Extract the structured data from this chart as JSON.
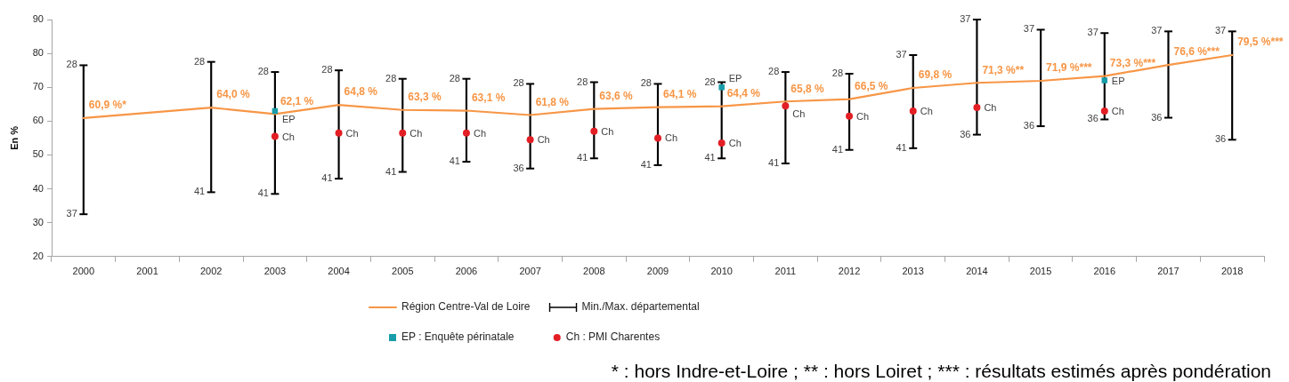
{
  "chart_data": {
    "type": "line",
    "ylabel": "En %",
    "categories": [
      "2000",
      "2001",
      "2002",
      "2003",
      "2004",
      "2005",
      "2006",
      "2007",
      "2008",
      "2009",
      "2010",
      "2011",
      "2012",
      "2013",
      "2014",
      "2015",
      "2016",
      "2017",
      "2018"
    ],
    "ylim": [
      20,
      90
    ],
    "yticks": [
      20,
      30,
      40,
      50,
      60,
      70,
      80,
      90
    ],
    "legend": "bottom",
    "series": [
      {
        "name": "Région Centre-Val de Loire",
        "color": "#f79646",
        "marker": "none",
        "values": [
          60.9,
          null,
          64.0,
          62.1,
          64.8,
          63.3,
          63.1,
          61.8,
          63.6,
          64.1,
          64.4,
          65.8,
          66.5,
          69.8,
          71.3,
          71.9,
          73.3,
          76.6,
          79.5
        ],
        "value_labels": [
          "60,9 %*",
          null,
          "64,0 %",
          "62,1 %",
          "64,8 %",
          "63,3 %",
          "63,1 %",
          "61,8 %",
          "63,6 %",
          "64,1 %",
          "64,4 %",
          "65,8 %",
          "66,5 %",
          "69,8 %",
          "71,3 %**",
          "71,9 %***",
          "73,3 %***",
          "76,6 %***",
          "79,5 %***"
        ]
      },
      {
        "name": "Min./Max. départemental",
        "type": "bar",
        "color": "#000000",
        "base": [
          32.5,
          null,
          39,
          38.5,
          43,
          45,
          48,
          46,
          49,
          47,
          49,
          47.5,
          51.5,
          52,
          56,
          58.5,
          60.5,
          61,
          54.5
        ],
        "values": [
          44,
          null,
          38.5,
          36,
          32,
          27.5,
          24.5,
          25,
          22.5,
          24,
          22.5,
          27,
          22.5,
          27.5,
          34,
          28.5,
          25.5,
          25.5,
          32
        ]
      },
      {
        "name": "EP : Enquête périnatale",
        "type": "scatter",
        "color": "#179ca9",
        "marker": "square",
        "values": [
          null,
          null,
          null,
          63,
          null,
          null,
          null,
          null,
          null,
          null,
          70,
          null,
          null,
          null,
          null,
          null,
          72,
          null,
          null
        ]
      },
      {
        "name": "Ch : PMI Charentes",
        "type": "scatter",
        "color": "#e31e24",
        "marker": "circle",
        "values": [
          null,
          null,
          null,
          55.5,
          56.5,
          56.5,
          56.5,
          54.5,
          57,
          55,
          53.5,
          64.5,
          61.5,
          63,
          64,
          null,
          63,
          null,
          null
        ]
      }
    ],
    "annotations": [
      {
        "text": "28",
        "x": "2000",
        "y": 76.5
      },
      {
        "text": "37",
        "x": "2000",
        "y": 32.5
      },
      {
        "text": "28",
        "x": "2002",
        "y": 77.5
      },
      {
        "text": "41",
        "x": "2002",
        "y": 39
      },
      {
        "text": "28",
        "x": "2003",
        "y": 74.5
      },
      {
        "text": "41",
        "x": "2003",
        "y": 38.5
      },
      {
        "text": "28",
        "x": "2004",
        "y": 75
      },
      {
        "text": "41",
        "x": "2004",
        "y": 43
      },
      {
        "text": "28",
        "x": "2005",
        "y": 72.5
      },
      {
        "text": "41",
        "x": "2005",
        "y": 45
      },
      {
        "text": "28",
        "x": "2006",
        "y": 72.5
      },
      {
        "text": "41",
        "x": "2006",
        "y": 48
      },
      {
        "text": "28",
        "x": "2007",
        "y": 71
      },
      {
        "text": "36",
        "x": "2007",
        "y": 46
      },
      {
        "text": "28",
        "x": "2008",
        "y": 71.5
      },
      {
        "text": "41",
        "x": "2008",
        "y": 49
      },
      {
        "text": "28",
        "x": "2009",
        "y": 71
      },
      {
        "text": "41",
        "x": "2009",
        "y": 47
      },
      {
        "text": "28",
        "x": "2010",
        "y": 71.5
      },
      {
        "text": "41",
        "x": "2010",
        "y": 49
      },
      {
        "text": "28",
        "x": "2011",
        "y": 74.5
      },
      {
        "text": "41",
        "x": "2011",
        "y": 47.5
      },
      {
        "text": "28",
        "x": "2012",
        "y": 74
      },
      {
        "text": "41",
        "x": "2012",
        "y": 51.5
      },
      {
        "text": "37",
        "x": "2013",
        "y": 79.5
      },
      {
        "text": "41",
        "x": "2013",
        "y": 52
      },
      {
        "text": "37",
        "x": "2014",
        "y": 90
      },
      {
        "text": "36",
        "x": "2014",
        "y": 56
      },
      {
        "text": "37",
        "x": "2015",
        "y": 87
      },
      {
        "text": "36",
        "x": "2015",
        "y": 58.5
      },
      {
        "text": "37",
        "x": "2016",
        "y": 86
      },
      {
        "text": "36",
        "x": "2016",
        "y": 60.5
      },
      {
        "text": "37",
        "x": "2017",
        "y": 86.5
      },
      {
        "text": "36",
        "x": "2017",
        "y": 61
      },
      {
        "text": "37",
        "x": "2018",
        "y": 86.5
      },
      {
        "text": "36",
        "x": "2018",
        "y": 54.5
      },
      {
        "text": "EP",
        "x": "2003",
        "y": 63
      },
      {
        "text": "EP",
        "x": "2010",
        "y": 70
      },
      {
        "text": "EP",
        "x": "2016",
        "y": 72
      },
      {
        "text": "Ch",
        "x": "2003",
        "y": 55.5
      },
      {
        "text": "Ch",
        "x": "2004",
        "y": 56.5
      },
      {
        "text": "Ch",
        "x": "2005",
        "y": 56.5
      },
      {
        "text": "Ch",
        "x": "2006",
        "y": 56.5
      },
      {
        "text": "Ch",
        "x": "2007",
        "y": 54.5
      },
      {
        "text": "Ch",
        "x": "2008",
        "y": 57
      },
      {
        "text": "Ch",
        "x": "2009",
        "y": 55
      },
      {
        "text": "Ch",
        "x": "2010",
        "y": 53.5
      },
      {
        "text": "Ch",
        "x": "2011",
        "y": 64.5
      },
      {
        "text": "Ch",
        "x": "2012",
        "y": 61.5
      },
      {
        "text": "Ch",
        "x": "2013",
        "y": 63
      },
      {
        "text": "Ch",
        "x": "2014",
        "y": 64
      },
      {
        "text": "Ch",
        "x": "2016",
        "y": 63
      },
      "* : hors Indre-et-Loire ; ** : hors Loiret ; *** : résultats estimés après pondération"
    ]
  }
}
